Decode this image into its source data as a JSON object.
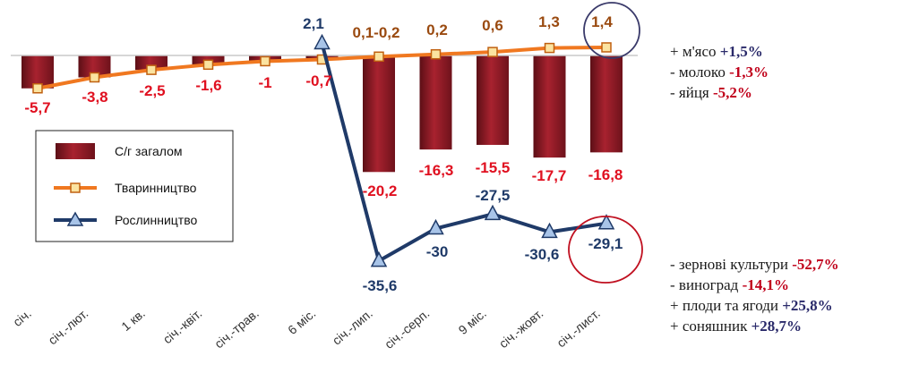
{
  "chart_data": {
    "type": "bar",
    "categories": [
      "січ.",
      "січ.-лют.",
      "1 кв.",
      "січ.-квіт.",
      "січ.-трав.",
      "6 міс.",
      "січ.-лип.",
      "січ.-серп.",
      "9 міс.",
      "січ.-жовт.",
      "січ.-лист."
    ],
    "ylim": [
      -40,
      5
    ],
    "series": [
      {
        "name": "С/г загалом",
        "type": "bar",
        "color": "#8b1a24",
        "values": [
          -5.7,
          -3.8,
          -2.5,
          -1.6,
          -1,
          -0.7,
          -20.2,
          -16.3,
          -15.5,
          -17.7,
          -16.8
        ],
        "labels": [
          "-5,7",
          "-3,8",
          "-2,5",
          "-1,6",
          "-1",
          "-0,7",
          "-20,2",
          "-16,3",
          "-15,5",
          "-17,7",
          "-16,8"
        ]
      },
      {
        "name": "Тваринництво",
        "type": "line",
        "color": "#f07820",
        "marker": "square",
        "values": [
          -5.7,
          -3.8,
          -2.5,
          -1.6,
          -1,
          -0.7,
          -0.2,
          0.2,
          0.6,
          1.3,
          1.4
        ],
        "labels": [
          "",
          "",
          "",
          "",
          "",
          "",
          "0,1-0,2",
          "0,2",
          "0,6",
          "1,3",
          "1,4"
        ]
      },
      {
        "name": "Рослинництво",
        "type": "line",
        "color": "#1f3a68",
        "marker": "triangle",
        "values": [
          null,
          null,
          null,
          null,
          null,
          2.1,
          -35.6,
          -30,
          -27.5,
          -30.6,
          -29.1
        ],
        "labels": [
          "",
          "",
          "",
          "",
          "",
          "2,1",
          "-35,6",
          "-30",
          "-27,5",
          "-30,6",
          "-29,1"
        ]
      }
    ],
    "legend": "left",
    "annotations": {
      "highlight_circles": [
        "1,4",
        "-29,1"
      ]
    }
  },
  "notes_top": [
    {
      "sign": "+ ",
      "text": "м'ясо ",
      "value": "+1,5%",
      "kind": "pos"
    },
    {
      "sign": "- ",
      "text": "молоко ",
      "value": "-1,3%",
      "kind": "neg"
    },
    {
      "sign": "- ",
      "text": "яйця ",
      "value": "-5,2%",
      "kind": "neg"
    }
  ],
  "notes_bottom": [
    {
      "sign": "- ",
      "text": "зернові культури ",
      "value": "-52,7%",
      "kind": "neg"
    },
    {
      "sign": "- ",
      "text": "виноград ",
      "value": "-14,1%",
      "kind": "neg"
    },
    {
      "sign": "+ ",
      "text": "плоди та ягоди ",
      "value": "+25,8%",
      "kind": "pos"
    },
    {
      "sign": "+ ",
      "text": "соняшник ",
      "value": "+28,7%",
      "kind": "pos"
    }
  ]
}
